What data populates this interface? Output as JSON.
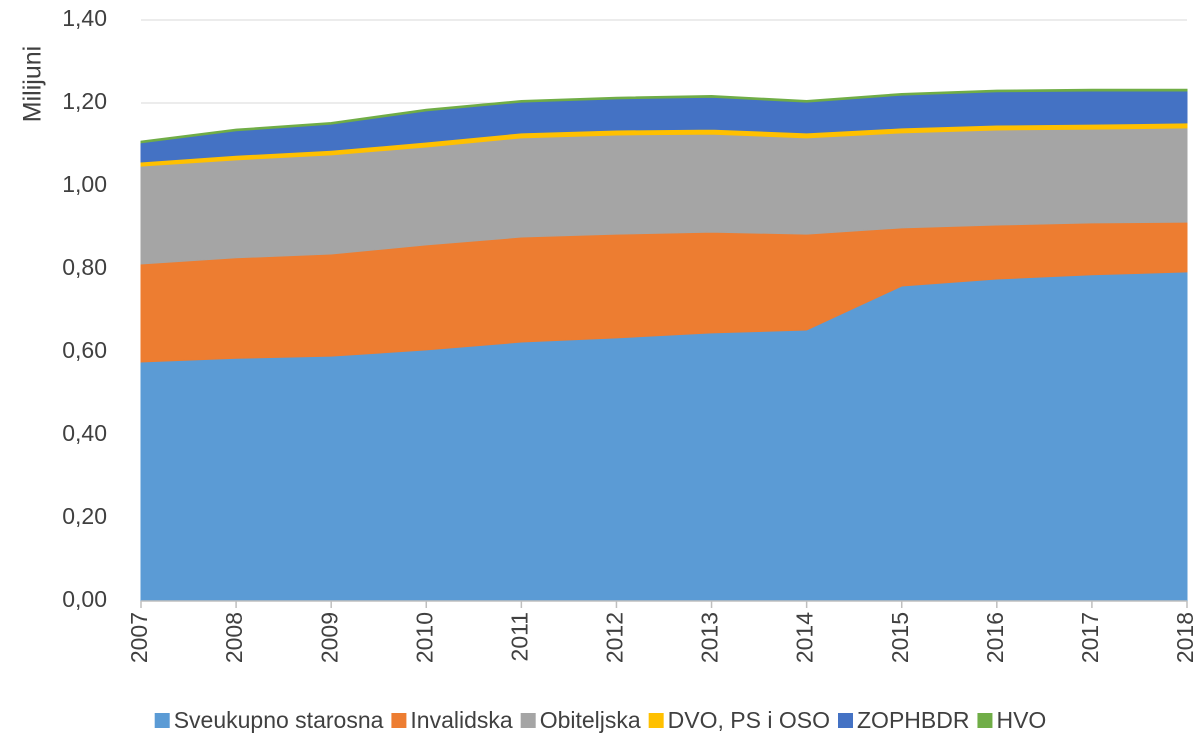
{
  "chart_data": {
    "type": "area",
    "stacked": true,
    "y_label": "Milijuni",
    "categories": [
      "2007",
      "2008",
      "2009",
      "2010",
      "2011",
      "2012",
      "2013",
      "2014",
      "2015",
      "2016",
      "2017",
      "2018"
    ],
    "series": [
      {
        "name": "Sveukupno starosna",
        "color": "#5b9bd5",
        "values": [
          0.576,
          0.585,
          0.59,
          0.605,
          0.624,
          0.634,
          0.646,
          0.653,
          0.759,
          0.776,
          0.786,
          0.793
        ]
      },
      {
        "name": "Invalidska",
        "color": "#ed7d31",
        "values": [
          0.236,
          0.242,
          0.246,
          0.253,
          0.253,
          0.25,
          0.243,
          0.231,
          0.14,
          0.13,
          0.125,
          0.12
        ]
      },
      {
        "name": "Obiteljska",
        "color": "#a5a5a5",
        "values": [
          0.236,
          0.236,
          0.239,
          0.236,
          0.239,
          0.239,
          0.236,
          0.232,
          0.229,
          0.229,
          0.226,
          0.227
        ]
      },
      {
        "name": "DVO, PS i OSO",
        "color": "#ffc000",
        "values": [
          0.01,
          0.011,
          0.011,
          0.012,
          0.012,
          0.012,
          0.012,
          0.012,
          0.012,
          0.012,
          0.012,
          0.012
        ]
      },
      {
        "name": "ZOPHBDR",
        "color": "#4472c4",
        "values": [
          0.046,
          0.059,
          0.063,
          0.075,
          0.074,
          0.075,
          0.077,
          0.074,
          0.079,
          0.08,
          0.08,
          0.077
        ]
      },
      {
        "name": "HVO",
        "color": "#70ad47",
        "values": [
          0.004,
          0.004,
          0.004,
          0.004,
          0.004,
          0.004,
          0.004,
          0.004,
          0.004,
          0.004,
          0.004,
          0.004
        ]
      }
    ],
    "ylim": [
      0,
      1.4
    ],
    "yticks": [
      {
        "value": 0,
        "label": "0,00"
      },
      {
        "value": 0.2,
        "label": "0,20"
      },
      {
        "value": 0.4,
        "label": "0,40"
      },
      {
        "value": 0.6,
        "label": "0,60"
      },
      {
        "value": 0.8,
        "label": "0,80"
      },
      {
        "value": 1.0,
        "label": "1,00"
      },
      {
        "value": 1.2,
        "label": "1,20"
      },
      {
        "value": 1.4,
        "label": "1,40"
      }
    ],
    "grid": true,
    "legend": "bottom"
  }
}
